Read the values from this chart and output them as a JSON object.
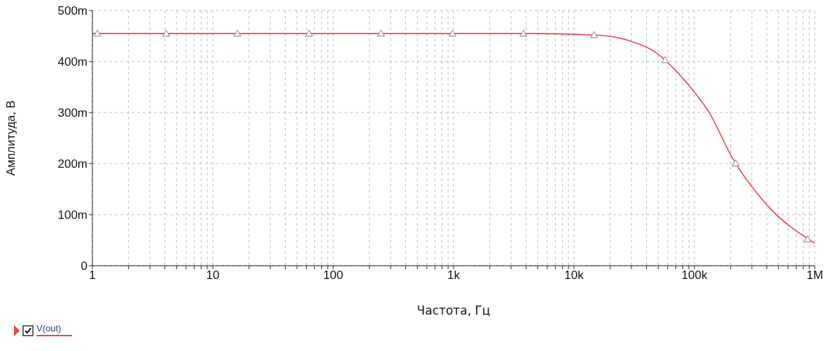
{
  "chart_data": {
    "type": "line",
    "xlabel": "Частота, Гц",
    "ylabel": "Амплитуда, В",
    "series": [
      {
        "name": "V(out)",
        "color": "#e8454a",
        "x": [
          1,
          4.1,
          16,
          63,
          250,
          980,
          3800,
          14700,
          29500,
          47000,
          57000,
          100000,
          132000,
          208000,
          400000,
          1000000
        ],
        "values": [
          455,
          455,
          455,
          455,
          455,
          455,
          455,
          452,
          440,
          419,
          403,
          340,
          301,
          210,
          119,
          44
        ]
      },
      {
        "type": "scatter",
        "color": "#808080",
        "marker": "triangle",
        "x": [
          1.1,
          4.1,
          16,
          63,
          250,
          980,
          3800,
          14700,
          57000,
          220000,
          870000
        ],
        "values": [
          455,
          455,
          455,
          455,
          455,
          455,
          455,
          452,
          403,
          201,
          52
        ]
      }
    ],
    "log": "x",
    "xlim": [
      1,
      1000000
    ],
    "xticks": [
      1,
      {
        "value": 2,
        "label": null
      },
      {
        "value": 3,
        "label": null
      },
      {
        "value": 4,
        "label": null
      },
      {
        "value": 5,
        "label": null
      },
      {
        "value": 6,
        "label": null
      },
      {
        "value": 7,
        "label": null
      },
      {
        "value": 8,
        "label": null
      },
      {
        "value": 9,
        "label": null
      },
      10,
      {
        "value": 20,
        "label": null
      },
      {
        "value": 30,
        "label": null
      },
      {
        "value": 40,
        "label": null
      },
      {
        "value": 50,
        "label": null
      },
      {
        "value": 60,
        "label": null
      },
      {
        "value": 70,
        "label": null
      },
      {
        "value": 80,
        "label": null
      },
      {
        "value": 90,
        "label": null
      },
      100,
      {
        "value": 200,
        "label": null
      },
      {
        "value": 300,
        "label": null
      },
      {
        "value": 400,
        "label": null
      },
      {
        "value": 500,
        "label": null
      },
      {
        "value": 600,
        "label": null
      },
      {
        "value": 700,
        "label": null
      },
      {
        "value": 800,
        "label": null
      },
      {
        "value": 900,
        "label": null
      },
      {
        "value": 1000,
        "label": "1k"
      },
      {
        "value": 2000,
        "label": null
      },
      {
        "value": 3000,
        "label": null
      },
      {
        "value": 4000,
        "label": null
      },
      {
        "value": 5000,
        "label": null
      },
      {
        "value": 6000,
        "label": null
      },
      {
        "value": 7000,
        "label": null
      },
      {
        "value": 8000,
        "label": null
      },
      {
        "value": 9000,
        "label": null
      },
      {
        "value": 10000,
        "label": "10k"
      },
      {
        "value": 20000,
        "label": null
      },
      {
        "value": 30000,
        "label": null
      },
      {
        "value": 40000,
        "label": null
      },
      {
        "value": 50000,
        "label": null
      },
      {
        "value": 60000,
        "label": null
      },
      {
        "value": 70000,
        "label": null
      },
      {
        "value": 80000,
        "label": null
      },
      {
        "value": 90000,
        "label": null
      },
      {
        "value": 100000,
        "label": "100k"
      },
      {
        "value": 200000,
        "label": null
      },
      {
        "value": 300000,
        "label": null
      },
      {
        "value": 400000,
        "label": null
      },
      {
        "value": 500000,
        "label": null
      },
      {
        "value": 600000,
        "label": null
      },
      {
        "value": 700000,
        "label": null
      },
      {
        "value": 800000,
        "label": null
      },
      {
        "value": 900000,
        "label": null
      },
      {
        "value": 1000000,
        "label": "1M"
      }
    ],
    "ylim": [
      0,
      500
    ],
    "yticks": [
      0,
      {
        "value": 100,
        "label": "100m"
      },
      {
        "value": 200,
        "label": "200m"
      },
      {
        "value": 300,
        "label": "300m"
      },
      {
        "value": 400,
        "label": "400m"
      },
      {
        "value": 500,
        "label": "500m"
      }
    ],
    "grid": true,
    "legend": "bottom left"
  }
}
